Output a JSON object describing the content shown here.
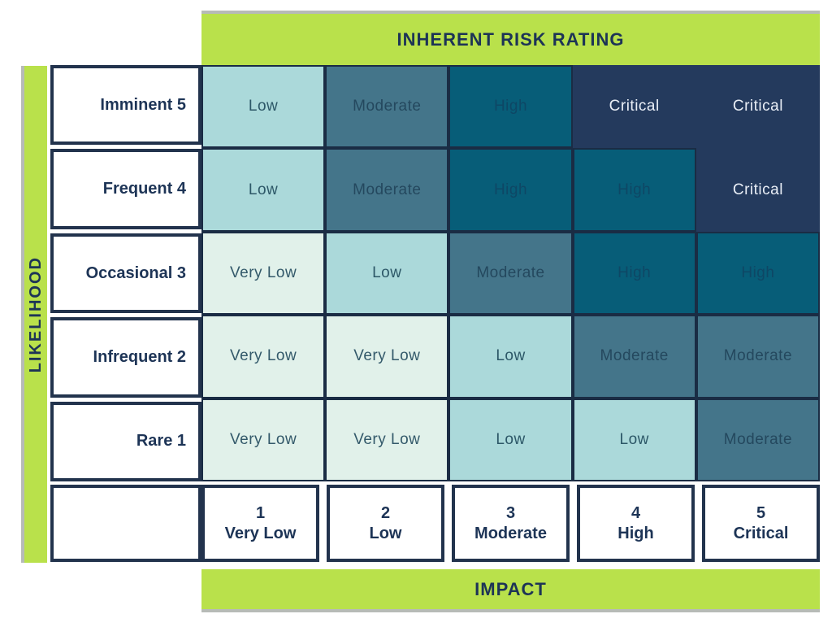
{
  "colors": {
    "green": "#b9e14b",
    "navy_text": "#1d3456",
    "label_cell_border": "#22334d",
    "matrix_cell_border": "#1a2c44",
    "background": "#ffffff",
    "gray_edge": "#b7bbb7"
  },
  "levels": {
    "Very Low": {
      "label": "Very Low",
      "bg": "#e1f1ea",
      "fg": "#33596a"
    },
    "Low": {
      "label": "Low",
      "bg": "#abd9da",
      "fg": "#2c5767"
    },
    "Moderate": {
      "label": "Moderate",
      "bg": "#44758a",
      "fg": "#24485e"
    },
    "High": {
      "label": "High",
      "bg": "#075d78",
      "fg": "#0e4765"
    },
    "Critical": {
      "label": "Critical",
      "bg": "#243a5d",
      "fg": "#e9eef6"
    }
  },
  "chart_data": {
    "type": "heatmap",
    "title": "INHERENT RISK RATING",
    "ylabel": "LIKELIHOOD",
    "xlabel": "IMPACT",
    "y_categories": [
      "Imminent 5",
      "Frequent 4",
      "Occasional 3",
      "Infrequent 2",
      "Rare 1"
    ],
    "x_categories": [
      {
        "num": "1",
        "name": "Very Low"
      },
      {
        "num": "2",
        "name": "Low"
      },
      {
        "num": "3",
        "name": "Moderate"
      },
      {
        "num": "4",
        "name": "High"
      },
      {
        "num": "5",
        "name": "Critical"
      }
    ],
    "values": [
      [
        "Low",
        "Moderate",
        "High",
        "Critical",
        "Critical"
      ],
      [
        "Low",
        "Moderate",
        "High",
        "High",
        "Critical"
      ],
      [
        "Very Low",
        "Low",
        "Moderate",
        "High",
        "High"
      ],
      [
        "Very Low",
        "Very Low",
        "Low",
        "Moderate",
        "Moderate"
      ],
      [
        "Very Low",
        "Very Low",
        "Low",
        "Low",
        "Moderate"
      ]
    ],
    "legend": "none",
    "grid": true
  }
}
